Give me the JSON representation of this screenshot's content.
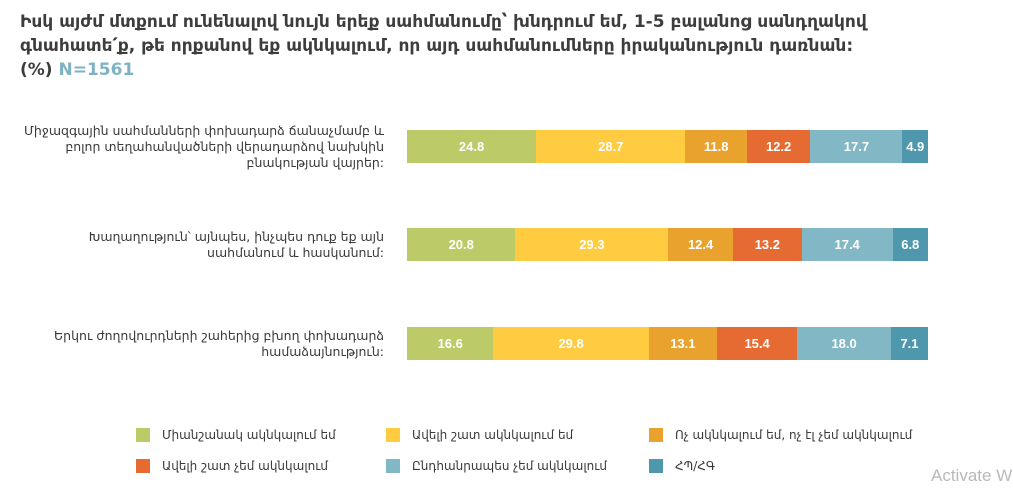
{
  "title_text": "Իսկ այժմ մտքում ունենալով նույն երեք սահմանումը՝ խնդրում եմ, 1-5 բալանոց սանդղակով գնահատե՛ք, թե որքանով եք ակնկալում, որ այդ սահմանումները իրականություն դառնան: (%)",
  "title_n": "N=1561",
  "watermark": "Activate W",
  "colors": [
    "#bccb67",
    "#fecb41",
    "#e8a22d",
    "#e56b33",
    "#82b7c5",
    "#4e97ad"
  ],
  "chart_data": {
    "type": "bar",
    "stacked": true,
    "orientation": "horizontal",
    "categories": [
      "Միջազգային սահմանների փոխադարձ ճանաչմամբ և բոլոր տեղահանվածների վերադարձով նախկին բնակության վայրեր:",
      "Խաղաղություն՝ այնպես, ինչպես դուք եք այն սահմանում և հասկանում:",
      "Երկու ժողովուրդների շահերից բխող փոխադարձ համաձայնություն:"
    ],
    "series": [
      {
        "name": "Միանշանակ ակնկալում եմ",
        "values": [
          24.8,
          20.8,
          16.6
        ]
      },
      {
        "name": "Ավելի շատ ակնկալում եմ",
        "values": [
          28.7,
          29.3,
          29.8
        ]
      },
      {
        "name": "Ոչ ակնկալում եմ, ոչ էլ չեմ ակնկալում",
        "values": [
          11.8,
          12.4,
          13.1
        ]
      },
      {
        "name": "Ավելի շատ չեմ ակնկալում",
        "values": [
          12.2,
          13.2,
          15.4
        ]
      },
      {
        "name": "Ընդհանրապես չեմ ակնկալում",
        "values": [
          17.7,
          17.4,
          18.0
        ]
      },
      {
        "name": "ՀՊ/ՀԳ",
        "values": [
          4.9,
          6.8,
          7.1
        ]
      }
    ],
    "legend_position": "bottom",
    "grid": false
  }
}
